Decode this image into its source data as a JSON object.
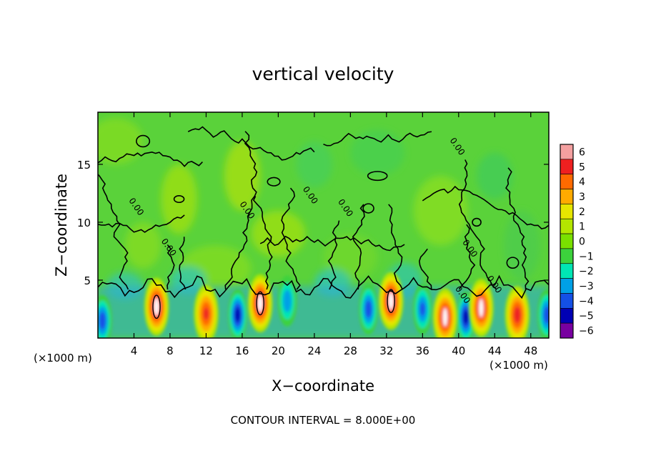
{
  "chart_data": {
    "type": "heatmap",
    "title": "vertical velocity",
    "xlabel": "X−coordinate",
    "ylabel": "Z−coordinate",
    "x_unit_left": "(×1000 m)",
    "x_unit_right": "(×1000 m)",
    "footer": "CONTOUR INTERVAL = 8.000E+00",
    "xlim": [
      0,
      50
    ],
    "ylim": [
      0,
      19.5
    ],
    "x_ticks": [
      4,
      8,
      12,
      16,
      20,
      24,
      28,
      32,
      36,
      40,
      44,
      48
    ],
    "x_tick_labels": [
      "4",
      "8",
      "12",
      "16",
      "20",
      "24",
      "28",
      "32",
      "36",
      "40",
      "44",
      "48"
    ],
    "y_ticks": [
      5,
      10,
      15
    ],
    "y_tick_labels": [
      "5",
      "10",
      "15"
    ],
    "colorbar": {
      "min": -6,
      "max": 6,
      "labels": [
        "6",
        "5",
        "4",
        "3",
        "2",
        "1",
        "0",
        "−1",
        "−2",
        "−3",
        "−4",
        "−5",
        "−6"
      ],
      "colors": [
        "#f4a0a0",
        "#ee2020",
        "#ff6a00",
        "#ffaa00",
        "#e6e600",
        "#b4e600",
        "#7ae000",
        "#3cd23c",
        "#00e6b4",
        "#00a0e6",
        "#1450e6",
        "#0000b4",
        "#7800a0"
      ]
    },
    "contour_labels": [
      {
        "x": 4.0,
        "z": 11.2,
        "text": "0.00"
      },
      {
        "x": 7.6,
        "z": 7.7,
        "text": "0.00"
      },
      {
        "x": 16.3,
        "z": 10.9,
        "text": "0.00"
      },
      {
        "x": 23.3,
        "z": 12.2,
        "text": "0.00"
      },
      {
        "x": 27.2,
        "z": 11.1,
        "text": "0.00"
      },
      {
        "x": 39.6,
        "z": 16.4,
        "text": "0.00"
      },
      {
        "x": 41.0,
        "z": 7.6,
        "text": "0.00"
      },
      {
        "x": 40.2,
        "z": 3.6,
        "text": "0.00"
      },
      {
        "x": 43.7,
        "z": 4.5,
        "text": "0.00"
      }
    ],
    "updraft_cores": [
      {
        "x": 6.5,
        "z": 2.7,
        "w": 6.0
      },
      {
        "x": 12.0,
        "z": 2.1,
        "w": 4.5
      },
      {
        "x": 18.0,
        "z": 3.0,
        "w": 6.0
      },
      {
        "x": 32.5,
        "z": 3.2,
        "w": 6.0
      },
      {
        "x": 38.5,
        "z": 1.8,
        "w": 5.5
      },
      {
        "x": 42.5,
        "z": 2.6,
        "w": 5.5
      },
      {
        "x": 46.5,
        "z": 2.0,
        "w": 5.0
      }
    ],
    "downdraft_cores": [
      {
        "x": 0.5,
        "z": 1.5,
        "w": -4.0
      },
      {
        "x": 15.5,
        "z": 2.0,
        "w": -5.0
      },
      {
        "x": 21.0,
        "z": 3.2,
        "w": -3.0
      },
      {
        "x": 30.0,
        "z": 2.5,
        "w": -4.0
      },
      {
        "x": 36.0,
        "z": 2.5,
        "w": -3.5
      },
      {
        "x": 40.8,
        "z": 1.8,
        "w": -5.0
      },
      {
        "x": 49.8,
        "z": 2.0,
        "w": -4.0
      }
    ]
  }
}
